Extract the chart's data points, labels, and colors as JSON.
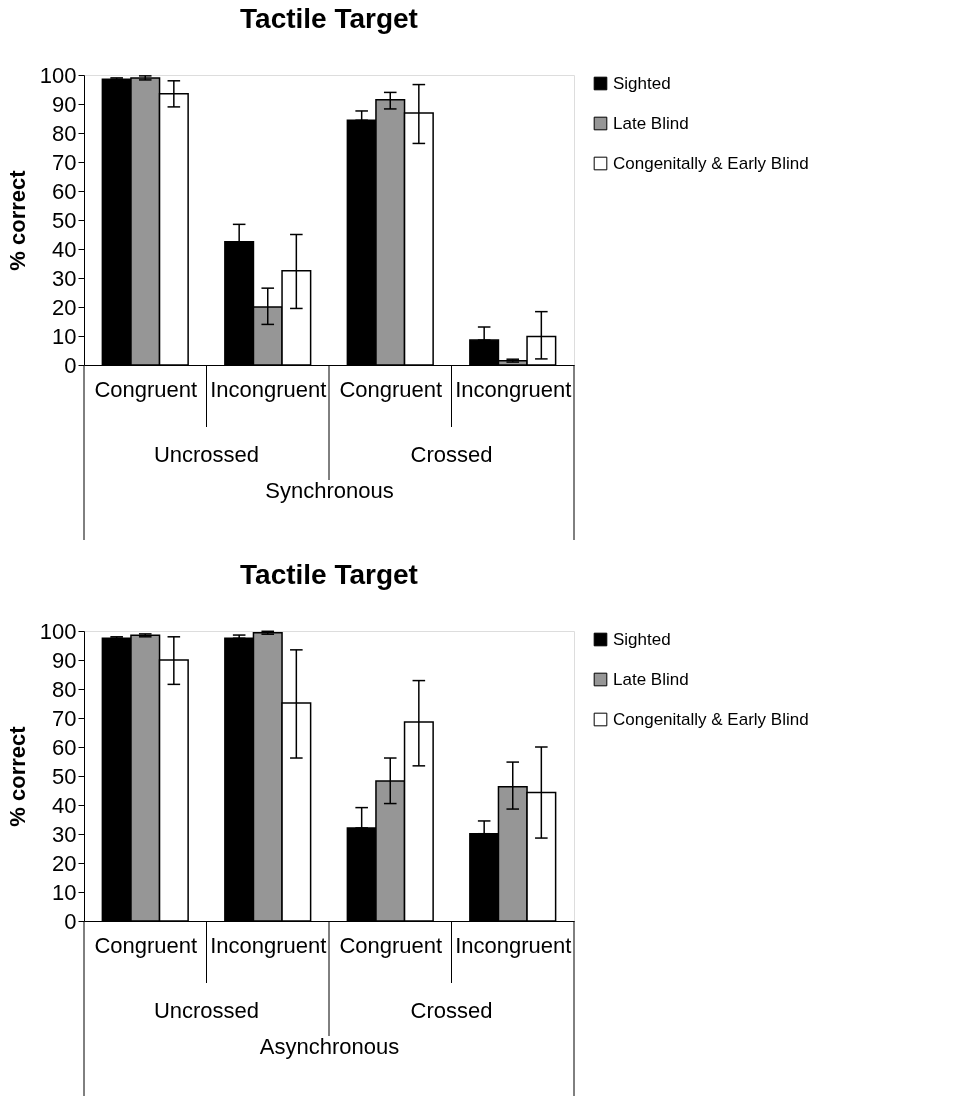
{
  "chart_data": [
    {
      "type": "bar",
      "title": "Tactile Target",
      "ylabel": "% correct",
      "xlabel": "Synchronous",
      "categories": [
        "Congruent",
        "Incongruent",
        "Congruent",
        "Incongruent"
      ],
      "annotations": [
        "Uncrossed",
        "Crossed"
      ],
      "ylim": [
        0,
        100
      ],
      "yticks": [
        0,
        10,
        20,
        30,
        40,
        50,
        60,
        70,
        80,
        90,
        100
      ],
      "grid": false,
      "legend": "top right",
      "series": [
        {
          "name": "Sighted",
          "color": "#000000",
          "values": [
            98.5,
            42.5,
            84.4,
            8.6
          ],
          "errors": [
            [
              98.5,
              99
            ],
            [
              42.5,
              48.5
            ],
            [
              84.4,
              87.6
            ],
            [
              8.6,
              13.1
            ]
          ]
        },
        {
          "name": "Late Blind",
          "color": "#969696",
          "values": [
            99.0,
            20.0,
            91.5,
            1.5
          ],
          "errors": [
            [
              98.3,
              99.7
            ],
            [
              14,
              26.5
            ],
            [
              88.3,
              94
            ],
            [
              1,
              2
            ]
          ]
        },
        {
          "name": "Congenitally & Early Blind",
          "color": "#ffffff",
          "values": [
            93.5,
            32.5,
            86.9,
            9.8
          ],
          "errors": [
            [
              89,
              98
            ],
            [
              19.5,
              45
            ],
            [
              76.4,
              96.7
            ],
            [
              2.1,
              18.4
            ]
          ]
        }
      ]
    },
    {
      "type": "bar",
      "title": "Tactile Target",
      "ylabel": "% correct",
      "xlabel": "Asynchronous",
      "categories": [
        "Congruent",
        "Incongruent",
        "Congruent",
        "Incongruent"
      ],
      "annotations": [
        "Uncrossed",
        "Crossed"
      ],
      "ylim": [
        0,
        100
      ],
      "yticks": [
        0,
        10,
        20,
        30,
        40,
        50,
        60,
        70,
        80,
        90,
        100
      ],
      "grid": false,
      "legend": "top right",
      "series": [
        {
          "name": "Sighted",
          "color": "#000000",
          "values": [
            97.5,
            97.5,
            32.1,
            30.1
          ],
          "errors": [
            [
              97.5,
              98
            ],
            [
              97.5,
              98.6
            ],
            [
              32.1,
              39.1
            ],
            [
              30.1,
              34.5
            ]
          ]
        },
        {
          "name": "Late Blind",
          "color": "#969696",
          "values": [
            98.5,
            99.4,
            48.3,
            46.3
          ],
          "errors": [
            [
              98,
              99
            ],
            [
              98.9,
              99.9
            ],
            [
              40.5,
              56.2
            ],
            [
              38.6,
              54.8
            ]
          ]
        },
        {
          "name": "Congenitally & Early Blind",
          "color": "#ffffff",
          "values": [
            90,
            75.2,
            68.6,
            44.3
          ],
          "errors": [
            [
              81.6,
              98
            ],
            [
              56.2,
              93.5
            ],
            [
              53.5,
              82.9
            ],
            [
              28.6,
              60
            ]
          ]
        }
      ]
    }
  ]
}
